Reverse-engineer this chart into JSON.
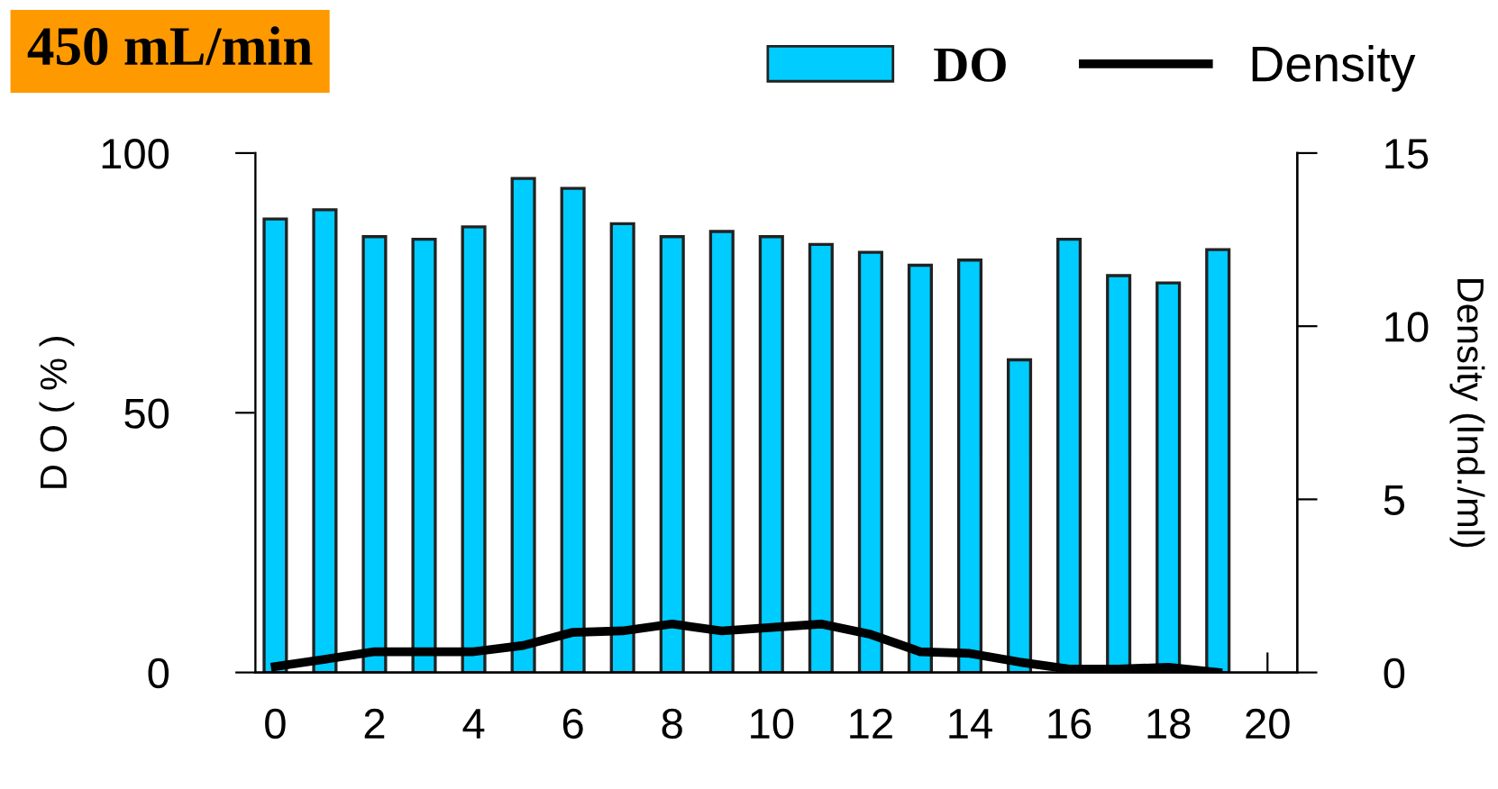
{
  "chart_data": {
    "type": "bar",
    "title": "450 mL/min",
    "ylabel": "D O ( % )",
    "y2label": "Density (Ind./ml)",
    "x": [
      0,
      1,
      2,
      3,
      4,
      5,
      6,
      7,
      8,
      9,
      10,
      11,
      12,
      13,
      14,
      15,
      16,
      17,
      18,
      19
    ],
    "xlim": [
      -0.4,
      20.6
    ],
    "xticks": [
      0,
      2,
      4,
      6,
      8,
      10,
      12,
      14,
      16,
      18,
      20
    ],
    "ylim": [
      0,
      100
    ],
    "yticks": [
      0,
      50,
      100
    ],
    "y2lim": [
      0,
      15
    ],
    "y2ticks": [
      0,
      5,
      10,
      15
    ],
    "series": [
      {
        "name": "DO",
        "color": "#00ccff",
        "values": [
          87.3,
          89.1,
          83.9,
          83.4,
          85.8,
          95.1,
          93.2,
          86.4,
          83.9,
          84.9,
          83.9,
          82.4,
          80.9,
          78.4,
          79.4,
          60.2,
          83.4,
          76.4,
          75.0,
          81.4
        ]
      },
      {
        "name": "Density",
        "type": "line",
        "axis": "y2",
        "color": "#000000",
        "values": [
          0.17,
          0.38,
          0.6,
          0.6,
          0.6,
          0.78,
          1.16,
          1.2,
          1.4,
          1.2,
          1.3,
          1.4,
          1.1,
          0.6,
          0.55,
          0.3,
          0.1,
          0.1,
          0.15,
          0.0
        ]
      }
    ],
    "legend": "top right",
    "grid": false
  }
}
